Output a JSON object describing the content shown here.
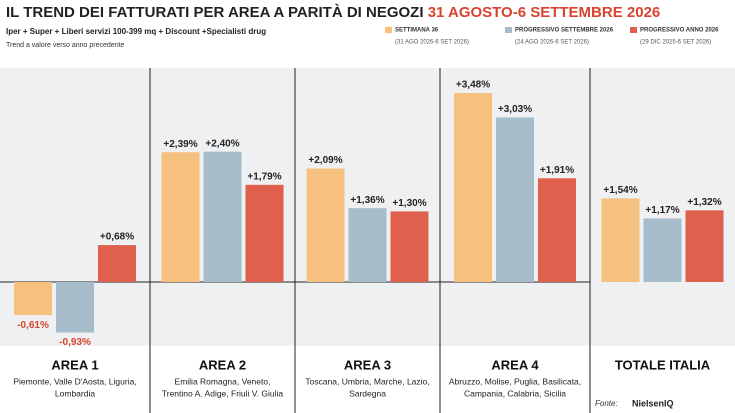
{
  "chart_data": {
    "type": "bar",
    "title": "IL TREND DEI FATTURATI PER AREA A PARITÀ DI NEGOZI",
    "title_highlight": "31 AGOSTO-6 SETTEMBRE 2026",
    "subtitle": "Iper + Super + Liberi servizi 100-399 mq + Discount +Specialisti drug",
    "note": "Trend a valore verso anno precedente",
    "categories": [
      "AREA 1",
      "AREA 2",
      "AREA 3",
      "AREA 4",
      "TOTALE ITALIA"
    ],
    "category_descriptions": [
      [
        "Piemonte, Valle D'Aosta, Liguria,",
        "Lombardia"
      ],
      [
        "Emilia Romagna, Veneto,",
        "Trentino A. Adige, Friuli V. Giulia"
      ],
      [
        "Toscana, Umbria, Marche, Lazio,",
        "Sardegna"
      ],
      [
        "Abruzzo, Molise, Puglia, Basilicata,",
        "Campania, Calabria, Sicilia"
      ],
      []
    ],
    "series": [
      {
        "name": "SETTIMANA 36",
        "period": "(31 AGO 2026-6 SET 2026)",
        "color": "#f6c17e",
        "values": [
          -0.61,
          2.39,
          2.09,
          3.48,
          1.54
        ],
        "value_labels": [
          "-0,61%",
          "+2,39%",
          "+2,09%",
          "+3,48%",
          "+1,54%"
        ]
      },
      {
        "name": "PROGRESSIVO SETTEMBRE 2026",
        "period": "(24 AGO 2026-6 SET 2026)",
        "color": "#a6bccb",
        "values": [
          -0.93,
          2.4,
          1.36,
          3.03,
          1.17
        ],
        "value_labels": [
          "-0,93%",
          "+2,40%",
          "+1,36%",
          "+3,03%",
          "+1,17%"
        ]
      },
      {
        "name": "PROGRESSIVO ANNO 2026",
        "period": "(29 DIC 2025-6 SET 2026)",
        "color": "#e0604e",
        "values": [
          0.68,
          1.79,
          1.3,
          1.91,
          1.32
        ],
        "value_labels": [
          "+0,68%",
          "+1,79%",
          "+1,30%",
          "+1,91%",
          "+1,32%"
        ]
      }
    ],
    "source_label": "Fonte:",
    "source": "NielsenIQ"
  }
}
